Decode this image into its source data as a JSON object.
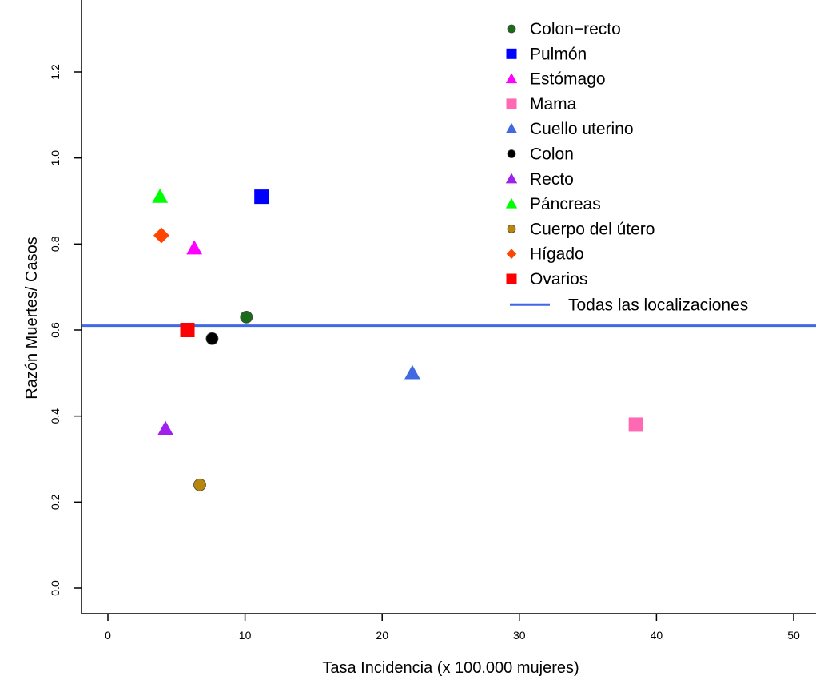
{
  "chart_data": {
    "type": "scatter",
    "title": "",
    "xlabel": "Tasa Incidencia (x 100.000 mujeres)",
    "ylabel": "Razón Muertes/ Casos",
    "xlim": [
      -2,
      51
    ],
    "ylim": [
      -0.05,
      1.35
    ],
    "xticks": [
      0,
      10,
      20,
      30,
      40,
      50
    ],
    "xtick_labels": [
      "0",
      "10",
      "20",
      "30",
      "40",
      "50"
    ],
    "yticks": [
      0.0,
      0.2,
      0.4,
      0.6,
      0.8,
      1.0,
      1.2
    ],
    "ytick_labels": [
      "0.0",
      "0.2",
      "0.4",
      "0.6",
      "0.8",
      "1.0",
      "1.2"
    ],
    "grid": false,
    "legend_position": "top-right",
    "series": [
      {
        "name": "Colon−recto",
        "marker": "circle",
        "color": "#1b6b1b",
        "x": 10.1,
        "y": 0.63
      },
      {
        "name": "Pulmón",
        "marker": "square",
        "color": "#0000ff",
        "x": 11.2,
        "y": 0.91
      },
      {
        "name": "Estómago",
        "marker": "triangle",
        "color": "#ff00ff",
        "x": 6.3,
        "y": 0.79
      },
      {
        "name": "Mama",
        "marker": "square",
        "color": "#ff69b4",
        "x": 38.5,
        "y": 0.38
      },
      {
        "name": "Cuello uterino",
        "marker": "triangle",
        "color": "#4169e1",
        "x": 22.2,
        "y": 0.5
      },
      {
        "name": "Colon",
        "marker": "circle",
        "color": "#000000",
        "x": 7.6,
        "y": 0.58
      },
      {
        "name": "Recto",
        "marker": "triangle",
        "color": "#a020f0",
        "x": 4.2,
        "y": 0.37
      },
      {
        "name": "Páncreas",
        "marker": "triangle",
        "color": "#00ff00",
        "x": 3.8,
        "y": 0.91
      },
      {
        "name": "Cuerpo del útero",
        "marker": "circle",
        "color": "#b8860b",
        "x": 6.7,
        "y": 0.24
      },
      {
        "name": "Hígado",
        "marker": "diamond",
        "color": "#ff4500",
        "x": 3.9,
        "y": 0.82
      },
      {
        "name": "Ovarios",
        "marker": "square",
        "color": "#ff0000",
        "x": 5.8,
        "y": 0.6
      }
    ],
    "reference_line": {
      "name": "Todas las localizaciones",
      "color": "#4169e1",
      "y": 0.61
    }
  }
}
